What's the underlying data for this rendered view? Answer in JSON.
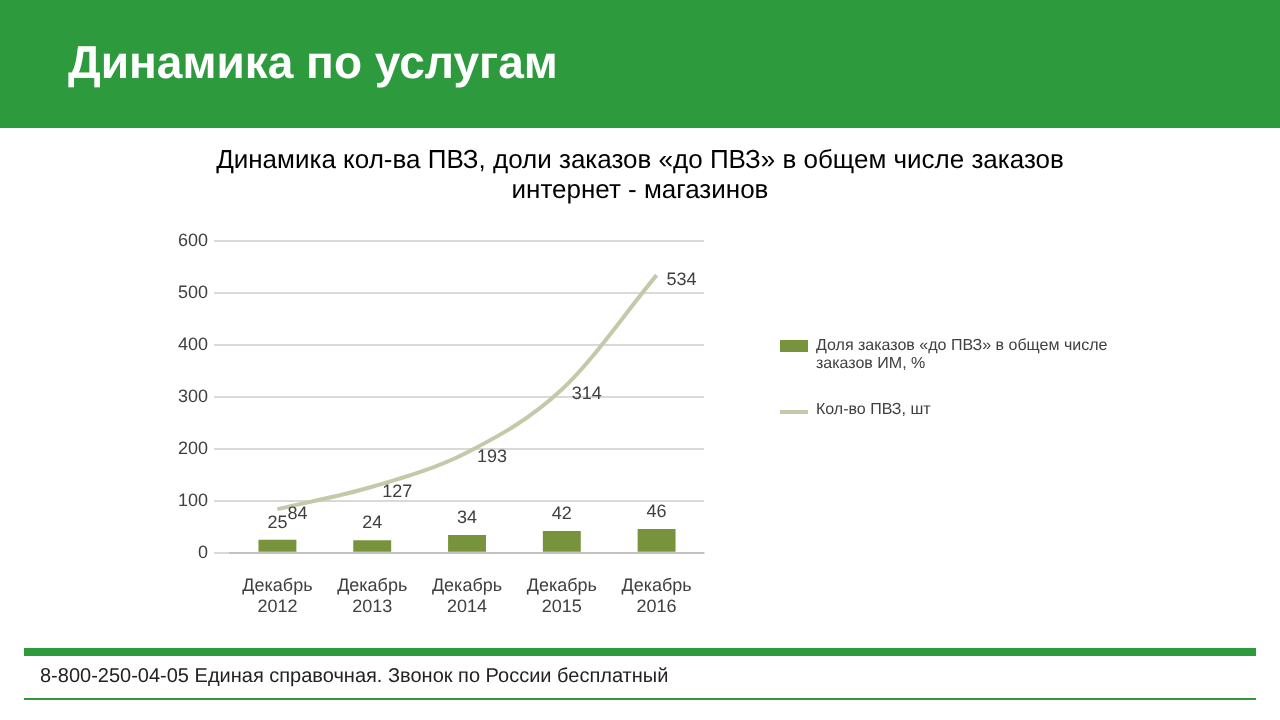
{
  "chart_data": {
    "type": "bar",
    "title": "Динамика по услугам",
    "subtitle": "Динамика кол-ва ПВЗ, доли заказов «до ПВЗ» в общем числе заказов интернет - магазинов",
    "categories": [
      "Декабрь\n2012",
      "Декабрь\n2013",
      "Декабрь\n2014",
      "Декабрь\n2015",
      "Декабрь\n2016"
    ],
    "series": [
      {
        "name": "Доля заказов «до ПВЗ» в общем числе заказов ИМ, %",
        "color": "#77933c",
        "values": [
          25,
          24,
          34,
          42,
          46
        ]
      },
      {
        "name": "Кол-во ПВЗ, шт",
        "type": "line",
        "color": "#c4c9a8",
        "values": [
          84,
          127,
          193,
          314,
          534
        ]
      }
    ],
    "ylim": [
      0,
      600
    ],
    "yticks": [
      0,
      100,
      200,
      300,
      400,
      500,
      600
    ],
    "grid": "y",
    "legend": "right",
    "data_labels": true,
    "marker": "none",
    "annotations": [
      "8-800-250-04-05 Единая справочная. Звонок по России бесплатный"
    ]
  }
}
